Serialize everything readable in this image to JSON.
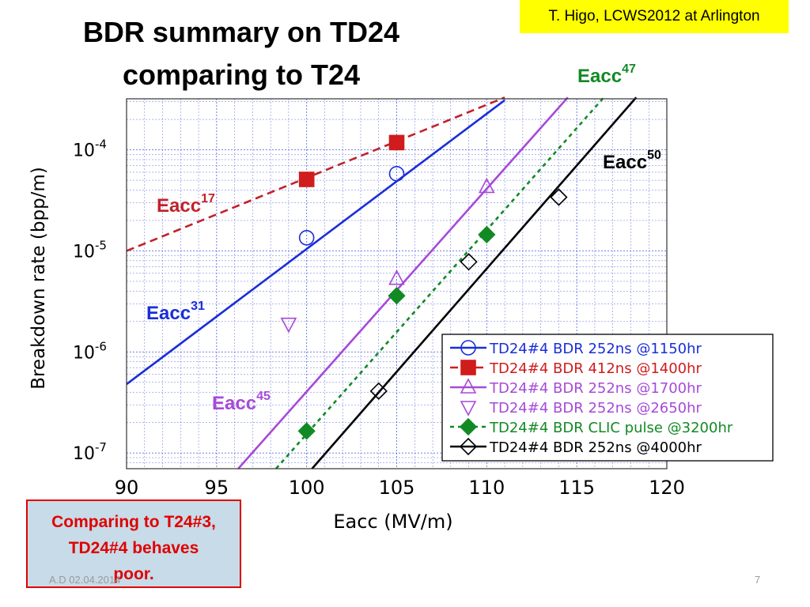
{
  "slide": {
    "title_line1": "BDR summary on TD24",
    "title_line2": "comparing to T24",
    "author_note": "T. Higo, LCWS2012 at Arlington",
    "comment_line1": "Comparing to T24#3,",
    "comment_line2": "TD24#4 behaves",
    "comment_line3": "poor.",
    "footer_date": "A.D 02.04.2014",
    "page_number": "7",
    "colors": {
      "author_bg": "#ffff00",
      "comment_text": "#e00000",
      "comment_bg": "#c7dbe8"
    }
  },
  "chart_data": {
    "type": "scatter",
    "xlabel": "Eacc (MV/m)",
    "ylabel": "Breakdown rate (bpp/m)",
    "xlim": [
      90,
      120
    ],
    "ylim": [
      7e-08,
      0.00032
    ],
    "yscale": "log",
    "grid": true,
    "legend_position": "bottom-right",
    "x_ticks": [
      "90",
      "95",
      "100",
      "105",
      "110",
      "115",
      "120"
    ],
    "y_ticks": [
      {
        "value": 1e-07,
        "base": "10",
        "exp": "-7"
      },
      {
        "value": 1e-06,
        "base": "10",
        "exp": "-6"
      },
      {
        "value": 1e-05,
        "base": "10",
        "exp": "-5"
      },
      {
        "value": 0.0001,
        "base": "10",
        "exp": "-4"
      }
    ],
    "series": [
      {
        "name": "TD24#4 BDR 252ns @1150hr",
        "color": "#1a2ed8",
        "marker": "circle-open",
        "line": "solid",
        "points": [
          [
            100,
            1.35e-05
          ],
          [
            105,
            5.8e-05
          ]
        ]
      },
      {
        "name": "TD24#4 BDR 412ns @1400hr",
        "color": "#d01c1c",
        "marker": "square-filled",
        "line": "dashed",
        "points": [
          [
            100,
            5.1e-05
          ],
          [
            105,
            0.000118
          ]
        ]
      },
      {
        "name": "TD24#4 BDR 252ns @1700hr",
        "color": "#a64ad8",
        "marker": "triangle-up-open",
        "line": "solid",
        "points": [
          [
            105,
            5.3e-06
          ],
          [
            110,
            4.3e-05
          ]
        ]
      },
      {
        "name": "TD24#4 BDR 252ns @2650hr",
        "color": "#a64ad8",
        "marker": "triangle-down-open",
        "line": "none",
        "points": [
          [
            99,
            1.9e-06
          ]
        ]
      },
      {
        "name": "TD24#4 BDR CLIC pulse @3200hr",
        "color": "#128a24",
        "marker": "diamond-filled",
        "line": "dotted",
        "points": [
          [
            100,
            1.65e-07
          ],
          [
            105,
            3.6e-06
          ],
          [
            110,
            1.45e-05
          ]
        ]
      },
      {
        "name": "TD24#4 BDR 252ns @4000hr",
        "color": "#000000",
        "marker": "diamond-open",
        "line": "solid",
        "points": [
          [
            104,
            4.1e-07
          ],
          [
            109,
            7.8e-06
          ],
          [
            114,
            3.4e-05
          ]
        ]
      }
    ],
    "fits": [
      {
        "label": "Eacc",
        "exp": "17",
        "color": "#c0222a",
        "line": "dashed",
        "points": [
          [
            90,
            1e-05
          ],
          [
            111,
            0.00033
          ]
        ]
      },
      {
        "label": "Eacc",
        "exp": "31",
        "color": "#1a2ed8",
        "line": "solid",
        "points": [
          [
            90,
            4.8e-07
          ],
          [
            111,
            0.00031
          ]
        ]
      },
      {
        "label": "Eacc",
        "exp": "45",
        "color": "#a64ad8",
        "line": "solid",
        "points": [
          [
            96.2,
            7e-08
          ],
          [
            114.5,
            0.00033
          ]
        ]
      },
      {
        "label": "Eacc",
        "exp": "47",
        "color": "#128a24",
        "line": "dotted",
        "points": [
          [
            98.3,
            7e-08
          ],
          [
            116.5,
            0.00033
          ]
        ]
      },
      {
        "label": "Eacc",
        "exp": "50",
        "color": "#000000",
        "line": "solid",
        "points": [
          [
            100.3,
            7e-08
          ],
          [
            118.3,
            0.00033
          ]
        ]
      }
    ]
  }
}
